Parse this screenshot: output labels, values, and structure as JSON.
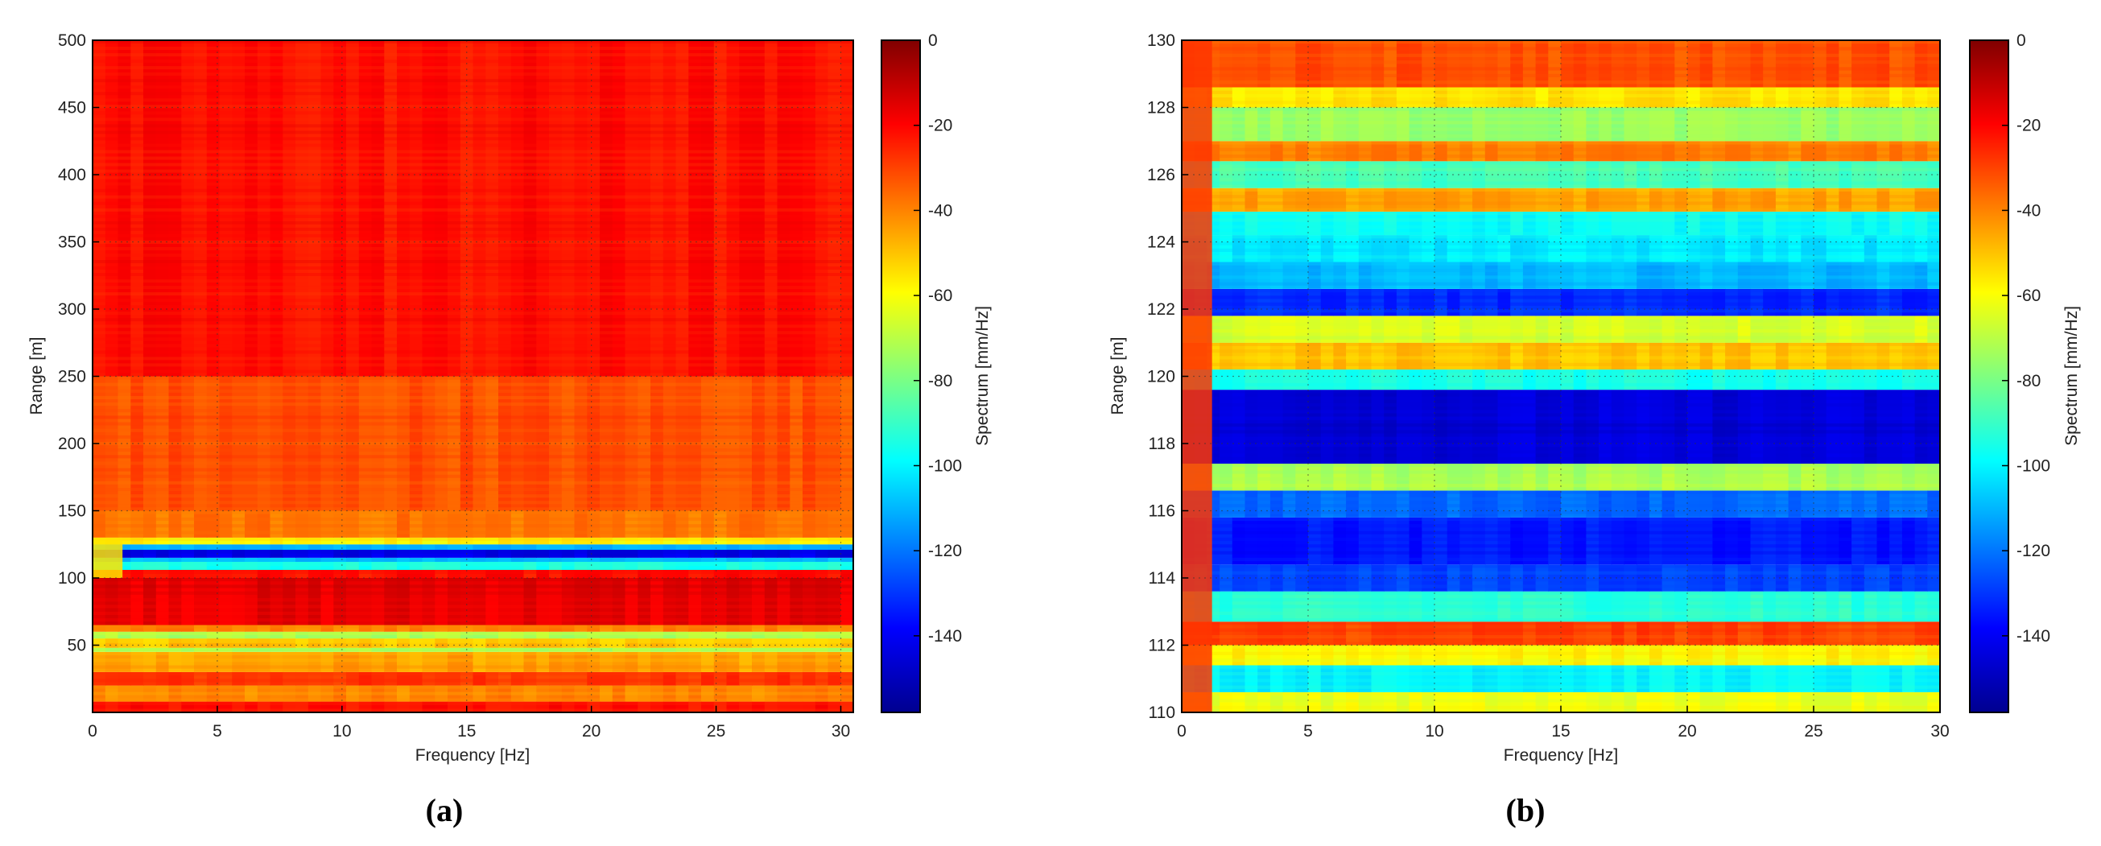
{
  "colors": {
    "jet_stops": [
      "#00008f",
      "#0000ff",
      "#00ffff",
      "#ffff00",
      "#ff0000",
      "#800000"
    ],
    "frame": "#000000"
  },
  "chart_data": [
    {
      "type": "heatmap",
      "panel_label": "(a)",
      "xlabel": "Frequency [Hz]",
      "ylabel": "Range [m]",
      "xlim": [
        0,
        30.5
      ],
      "ylim": [
        0,
        500
      ],
      "xticks": [
        0,
        5,
        10,
        15,
        20,
        25,
        30
      ],
      "yticks": [
        50,
        100,
        150,
        200,
        250,
        300,
        350,
        400,
        450,
        500
      ],
      "grid": true,
      "colorbar": {
        "label": "Spectrum [mm/Hz]",
        "range": [
          -158,
          0
        ],
        "ticks": [
          0,
          -20,
          -40,
          -60,
          -80,
          -100,
          -120,
          -140
        ]
      },
      "bands": [
        {
          "y": [
            0,
            8
          ],
          "value": -22
        },
        {
          "y": [
            8,
            20
          ],
          "value": -40
        },
        {
          "y": [
            20,
            30
          ],
          "value": -28
        },
        {
          "y": [
            30,
            45
          ],
          "value": -45
        },
        {
          "y": [
            45,
            48
          ],
          "value": -70
        },
        {
          "y": [
            48,
            55
          ],
          "value": -50
        },
        {
          "y": [
            55,
            60
          ],
          "value": -72
        },
        {
          "y": [
            60,
            65
          ],
          "value": -40
        },
        {
          "y": [
            65,
            100
          ],
          "value": -16
        },
        {
          "y": [
            100,
            106
          ],
          "value": -22
        },
        {
          "y": [
            106,
            112
          ],
          "value": -95
        },
        {
          "y": [
            112,
            115
          ],
          "value": -108
        },
        {
          "y": [
            115,
            121
          ],
          "value": -142
        },
        {
          "y": [
            121,
            125
          ],
          "value": -112
        },
        {
          "y": [
            125,
            130
          ],
          "value": -58
        },
        {
          "y": [
            130,
            150
          ],
          "value": -38
        },
        {
          "y": [
            150,
            250
          ],
          "value": -32
        },
        {
          "y": [
            250,
            500
          ],
          "value": -22
        }
      ],
      "low_freq_column": {
        "x": [
          0,
          1.2
        ],
        "y": [
          100,
          130
        ],
        "value": -55
      }
    },
    {
      "type": "heatmap",
      "panel_label": "(b)",
      "xlabel": "Frequency [Hz]",
      "ylabel": "Range [m]",
      "xlim": [
        0,
        30
      ],
      "ylim": [
        110,
        130
      ],
      "xticks": [
        0,
        5,
        10,
        15,
        20,
        25,
        30
      ],
      "yticks": [
        110,
        112,
        114,
        116,
        118,
        120,
        122,
        124,
        126,
        128,
        130
      ],
      "grid": true,
      "colorbar": {
        "label": "Spectrum [mm/Hz]",
        "range": [
          -158,
          0
        ],
        "ticks": [
          0,
          -20,
          -40,
          -60,
          -80,
          -100,
          -120,
          -140
        ]
      },
      "bands": [
        {
          "y": [
            110,
            110.6
          ],
          "value": -62
        },
        {
          "y": [
            110.6,
            111.4
          ],
          "value": -100
        },
        {
          "y": [
            111.4,
            112.0
          ],
          "value": -58
        },
        {
          "y": [
            112.0,
            112.7
          ],
          "value": -30
        },
        {
          "y": [
            112.7,
            113.6
          ],
          "value": -92
        },
        {
          "y": [
            113.6,
            114.4
          ],
          "value": -128
        },
        {
          "y": [
            114.4,
            115.8
          ],
          "value": -135
        },
        {
          "y": [
            115.8,
            116.6
          ],
          "value": -122
        },
        {
          "y": [
            116.6,
            117.4
          ],
          "value": -72
        },
        {
          "y": [
            117.4,
            119.6
          ],
          "value": -145
        },
        {
          "y": [
            119.6,
            120.2
          ],
          "value": -95
        },
        {
          "y": [
            120.2,
            121.0
          ],
          "value": -50
        },
        {
          "y": [
            121.0,
            121.8
          ],
          "value": -65
        },
        {
          "y": [
            121.8,
            122.6
          ],
          "value": -132
        },
        {
          "y": [
            122.6,
            123.4
          ],
          "value": -110
        },
        {
          "y": [
            123.4,
            124.2
          ],
          "value": -102
        },
        {
          "y": [
            124.2,
            124.9
          ],
          "value": -98
        },
        {
          "y": [
            124.9,
            125.6
          ],
          "value": -45
        },
        {
          "y": [
            125.6,
            126.4
          ],
          "value": -88
        },
        {
          "y": [
            126.4,
            127.0
          ],
          "value": -40
        },
        {
          "y": [
            127.0,
            128.0
          ],
          "value": -75
        },
        {
          "y": [
            128.0,
            128.6
          ],
          "value": -55
        },
        {
          "y": [
            128.6,
            130.0
          ],
          "value": -32
        }
      ],
      "low_freq_column": {
        "x": [
          0,
          1.2
        ],
        "y": [
          110,
          130
        ],
        "value": -28
      }
    }
  ]
}
